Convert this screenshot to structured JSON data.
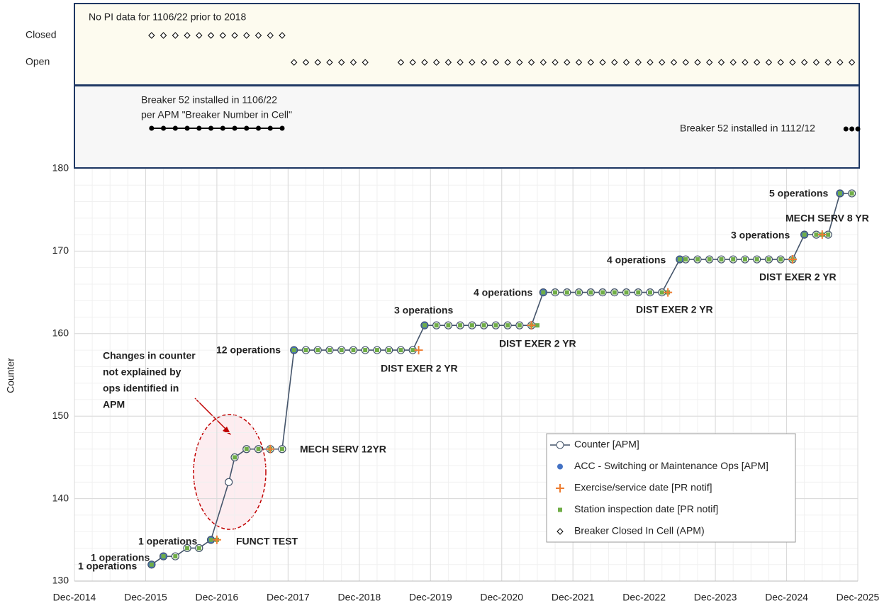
{
  "chart_data": {
    "type": "line",
    "y_label": "Counter",
    "xticks": [
      {
        "value": "2014-12",
        "label": "Dec-2014"
      },
      {
        "value": "2015-12",
        "label": "Dec-2015"
      },
      {
        "value": "2016-12",
        "label": "Dec-2016"
      },
      {
        "value": "2017-12",
        "label": "Dec-2017"
      },
      {
        "value": "2018-12",
        "label": "Dec-2018"
      },
      {
        "value": "2019-12",
        "label": "Dec-2019"
      },
      {
        "value": "2020-12",
        "label": "Dec-2020"
      },
      {
        "value": "2021-12",
        "label": "Dec-2021"
      },
      {
        "value": "2022-12",
        "label": "Dec-2022"
      },
      {
        "value": "2023-12",
        "label": "Dec-2023"
      },
      {
        "value": "2024-12",
        "label": "Dec-2024"
      },
      {
        "value": "2025-12",
        "label": "Dec-2025"
      }
    ],
    "xlim": [
      "2014-12",
      "2025-12"
    ],
    "ylim": [
      130,
      180
    ],
    "yticks": [
      130,
      140,
      150,
      160,
      170,
      180
    ],
    "grid": true,
    "series": [
      {
        "name": "Counter [APM]",
        "color": "#44546a",
        "x": [
          "2016-01",
          "2016-03",
          "2016-05",
          "2016-07",
          "2016-09",
          "2016-11",
          "2017-02",
          "2017-03",
          "2017-05",
          "2017-07",
          "2017-09",
          "2017-11",
          "2018-01",
          "2018-03",
          "2018-05",
          "2018-07",
          "2018-09",
          "2018-11",
          "2019-01",
          "2019-03",
          "2019-05",
          "2019-07",
          "2019-09",
          "2019-11",
          "2020-01",
          "2020-03",
          "2020-05",
          "2020-07",
          "2020-09",
          "2020-11",
          "2021-01",
          "2021-03",
          "2021-05",
          "2021-07",
          "2021-09",
          "2021-11",
          "2022-01",
          "2022-03",
          "2022-05",
          "2022-07",
          "2022-09",
          "2022-11",
          "2023-01",
          "2023-03",
          "2023-06",
          "2023-07",
          "2023-09",
          "2023-11",
          "2024-01",
          "2024-03",
          "2024-05",
          "2024-07",
          "2024-09",
          "2024-11",
          "2025-01",
          "2025-03",
          "2025-05",
          "2025-07",
          "2025-09",
          "2025-11"
        ],
        "values": [
          132,
          133,
          133,
          134,
          134,
          135,
          142,
          145,
          146,
          146,
          146,
          146,
          158,
          158,
          158,
          158,
          158,
          158,
          158,
          158,
          158,
          158,
          158,
          161,
          161,
          161,
          161,
          161,
          161,
          161,
          161,
          161,
          161,
          165,
          165,
          165,
          165,
          165,
          165,
          165,
          165,
          165,
          165,
          165,
          169,
          169,
          169,
          169,
          169,
          169,
          169,
          169,
          169,
          169,
          169,
          172,
          172,
          172,
          177,
          177
        ]
      },
      {
        "name": "ACC - Switching or Maintenance Ops [APM]",
        "color": "#4472c4",
        "x": [
          "2016-01",
          "2016-03",
          "2016-11",
          "2018-01",
          "2019-11",
          "2021-07",
          "2023-06",
          "2025-03",
          "2025-09"
        ],
        "values": [
          132,
          133,
          135,
          158,
          161,
          165,
          169,
          172,
          177
        ]
      },
      {
        "name": "Exercise/service date [PR notif]",
        "color": "#ed7d31",
        "x": [
          "2016-12",
          "2017-09",
          "2019-10",
          "2021-05",
          "2023-04",
          "2025-01",
          "2025-06"
        ],
        "values": [
          135,
          146,
          158,
          161,
          165,
          169,
          172
        ]
      },
      {
        "name": "Station inspection date [PR notif]",
        "color": "#70ad47",
        "x": [
          "2016-01",
          "2016-03",
          "2016-05",
          "2016-07",
          "2016-09",
          "2016-11",
          "2016-12",
          "2017-03",
          "2017-05",
          "2017-07",
          "2017-09",
          "2017-11",
          "2018-01",
          "2018-03",
          "2018-05",
          "2018-07",
          "2018-09",
          "2018-11",
          "2019-01",
          "2019-03",
          "2019-05",
          "2019-07",
          "2019-09",
          "2019-11",
          "2020-01",
          "2020-03",
          "2020-05",
          "2020-07",
          "2020-09",
          "2020-11",
          "2021-01",
          "2021-03",
          "2021-05",
          "2021-06",
          "2021-07",
          "2021-09",
          "2021-11",
          "2022-01",
          "2022-03",
          "2022-05",
          "2022-07",
          "2022-09",
          "2022-11",
          "2023-01",
          "2023-03",
          "2023-04",
          "2023-06",
          "2023-07",
          "2023-09",
          "2023-11",
          "2024-01",
          "2024-03",
          "2024-05",
          "2024-07",
          "2024-09",
          "2024-11",
          "2025-01",
          "2025-03",
          "2025-05",
          "2025-06",
          "2025-07",
          "2025-09",
          "2025-11"
        ],
        "values": [
          132,
          133,
          133,
          134,
          134,
          135,
          135,
          145,
          146,
          146,
          146,
          146,
          158,
          158,
          158,
          158,
          158,
          158,
          158,
          158,
          158,
          158,
          158,
          161,
          161,
          161,
          161,
          161,
          161,
          161,
          161,
          161,
          161,
          161,
          165,
          165,
          165,
          165,
          165,
          165,
          165,
          165,
          165,
          165,
          165,
          165,
          169,
          169,
          169,
          169,
          169,
          169,
          169,
          169,
          169,
          169,
          169,
          172,
          172,
          172,
          172,
          177,
          177
        ]
      }
    ],
    "status": {
      "name": "Breaker Closed In Cell (APM)",
      "note": "No PI data for 1106/22 prior to 2018",
      "rows": [
        {
          "name": "Closed",
          "x": [
            "2016-01",
            "2016-03",
            "2016-05",
            "2016-07",
            "2016-09",
            "2016-11",
            "2017-01",
            "2017-03",
            "2017-05",
            "2017-07",
            "2017-09",
            "2017-11"
          ]
        },
        {
          "name": "Open",
          "x": [
            "2018-01",
            "2018-03",
            "2018-05",
            "2018-07",
            "2018-09",
            "2018-11",
            "2019-01",
            "2019-07",
            "2019-09",
            "2019-11",
            "2020-01",
            "2020-03",
            "2020-05",
            "2020-07",
            "2020-09",
            "2020-11",
            "2021-01",
            "2021-03",
            "2021-05",
            "2021-07",
            "2021-09",
            "2021-11",
            "2022-01",
            "2022-03",
            "2022-05",
            "2022-07",
            "2022-09",
            "2022-11",
            "2023-01",
            "2023-03",
            "2023-05",
            "2023-07",
            "2023-09",
            "2023-11",
            "2024-01",
            "2024-03",
            "2024-05",
            "2024-07",
            "2024-09",
            "2024-11",
            "2025-01",
            "2025-03",
            "2025-05",
            "2025-07",
            "2025-09",
            "2025-11"
          ]
        }
      ]
    },
    "installed": [
      {
        "label": [
          "Breaker 52 installed in 1106/22",
          "per APM \"Breaker Number in Cell\""
        ],
        "x": [
          "2016-01",
          "2016-03",
          "2016-05",
          "2016-07",
          "2016-09",
          "2016-11",
          "2017-01",
          "2017-03",
          "2017-05",
          "2017-07",
          "2017-09",
          "2017-11"
        ]
      },
      {
        "label": [
          "Breaker 52 installed in 1112/12"
        ],
        "x": [
          "2025-10",
          "2025-11",
          "2025-12"
        ]
      }
    ],
    "ops_annotations": [
      "1 operations",
      "1 operations",
      "1 operations",
      "12 operations",
      "3 operations",
      "4 operations",
      "4 operations",
      "3 operations",
      "5 operations"
    ],
    "work_annotations": [
      "FUNCT TEST",
      "MECH SERV 12YR",
      "DIST EXER 2 YR",
      "DIST EXER 2 YR",
      "DIST EXER 2 YR",
      "DIST EXER 2 YR",
      "MECH SERV 8 YR"
    ],
    "callout": [
      "Changes in counter",
      "not explained by",
      "ops identified in",
      "APM"
    ]
  }
}
